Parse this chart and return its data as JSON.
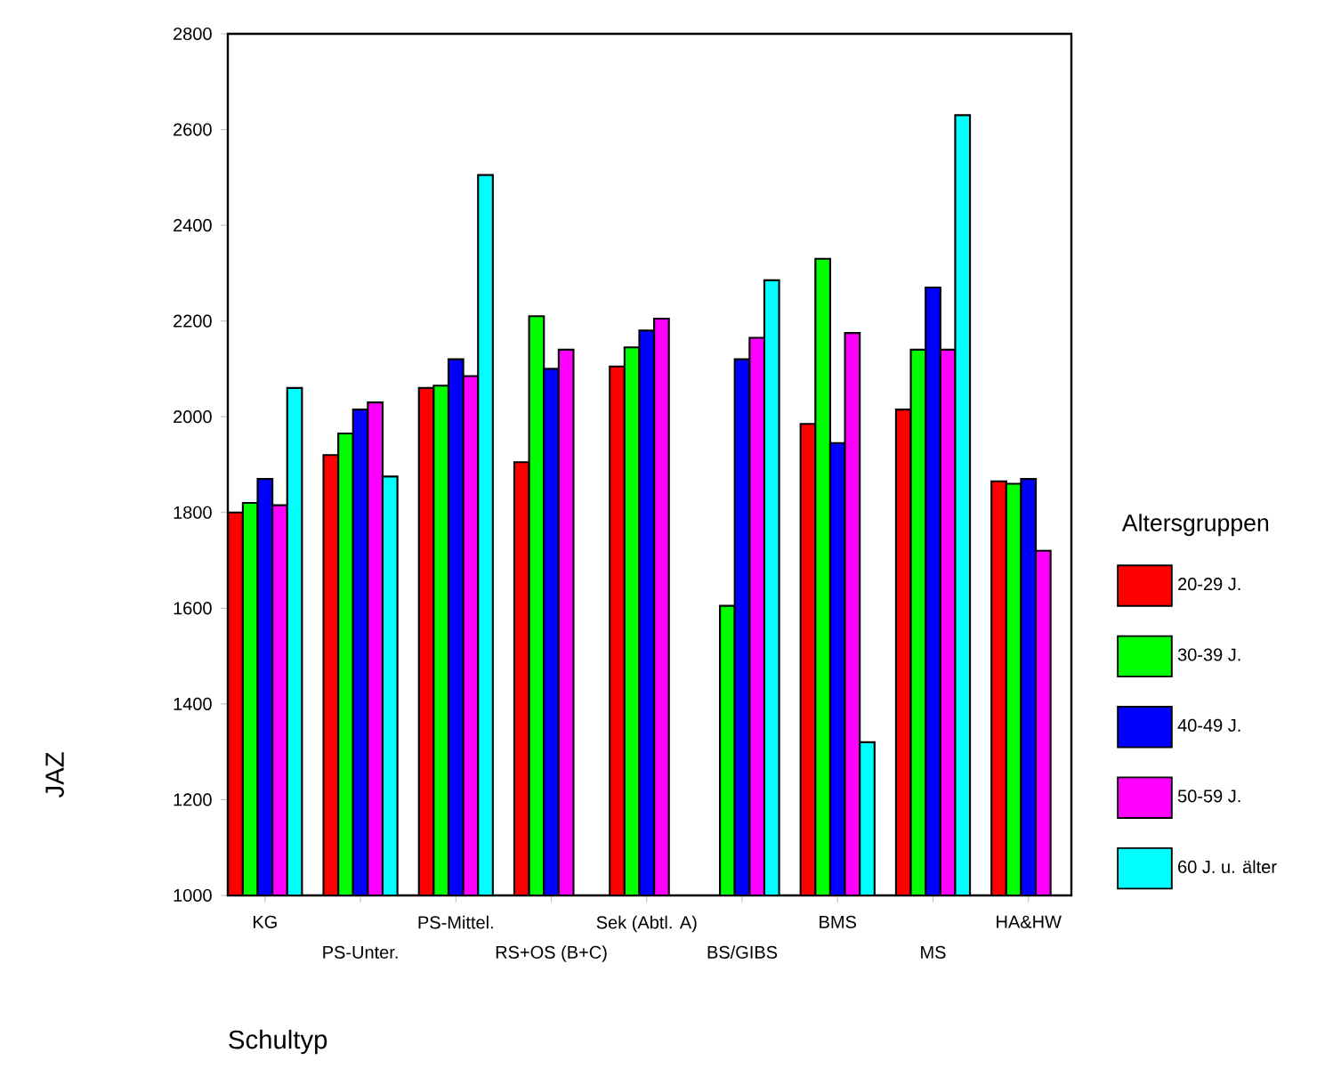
{
  "chart_data": {
    "type": "bar",
    "xlabel": "Schultyp",
    "ylabel": "JAZ",
    "legend_title": "Altersgruppen",
    "legend": "right",
    "categories": [
      "KG",
      "PS-Unter.",
      "PS-Mittel.",
      "RS+OS (B+C)",
      "Sek (Abtl. A)",
      "BS/GIBS",
      "BMS",
      "MS",
      "HA&HW"
    ],
    "ylim": [
      1000,
      2800
    ],
    "yticks": [
      1000,
      1200,
      1400,
      1600,
      1800,
      2000,
      2200,
      2400,
      2600,
      2800
    ],
    "series": [
      {
        "name": "20-29 J.",
        "color": "#ff0000",
        "values": [
          1800,
          1920,
          2060,
          1905,
          2105,
          null,
          1985,
          2015,
          1865
        ]
      },
      {
        "name": "30-39 J.",
        "color": "#00ff00",
        "values": [
          1820,
          1965,
          2065,
          2210,
          2145,
          1605,
          2330,
          2140,
          1860
        ]
      },
      {
        "name": "40-49 J.",
        "color": "#0000ff",
        "values": [
          1870,
          2015,
          2120,
          2100,
          2180,
          2120,
          1945,
          2270,
          1870
        ]
      },
      {
        "name": "50-59 J.",
        "color": "#ff00ff",
        "values": [
          1815,
          2030,
          2085,
          2140,
          2205,
          2165,
          2175,
          2140,
          1720
        ]
      },
      {
        "name": "60 J. u. älter",
        "color": "#00ffff",
        "values": [
          2060,
          1875,
          2505,
          null,
          null,
          2285,
          1320,
          2630,
          null
        ]
      }
    ]
  }
}
